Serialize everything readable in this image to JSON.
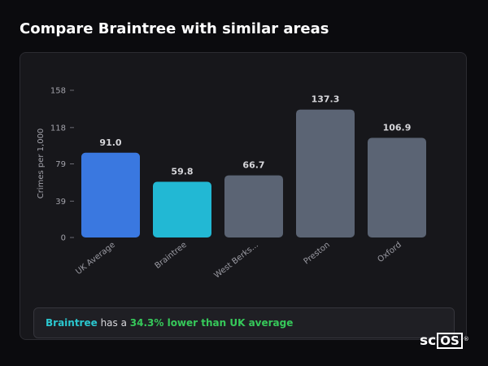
{
  "page": {
    "title": "Compare Braintree with similar areas"
  },
  "chart_data": {
    "type": "bar",
    "categories": [
      "UK Average",
      "Braintree",
      "West Berks...",
      "Preston",
      "Oxford"
    ],
    "values": [
      91.0,
      59.8,
      66.7,
      137.3,
      106.9
    ],
    "value_labels": [
      "91.0",
      "59.8",
      "66.7",
      "137.3",
      "106.9"
    ],
    "yticks": [
      0,
      39,
      79,
      118,
      158
    ],
    "ylim": [
      0,
      158
    ],
    "ylabel": "Crimes per 1,000",
    "colors": [
      "#3a78e0",
      "#22b8d4",
      "#5b6474",
      "#5b6474",
      "#5b6474"
    ],
    "grid": false
  },
  "summary": {
    "area": "Braintree",
    "middle": " has a ",
    "comparison": "34.3% lower than UK average"
  },
  "logo": {
    "prefix": "sc",
    "boxed": "OS",
    "mark": "®"
  }
}
